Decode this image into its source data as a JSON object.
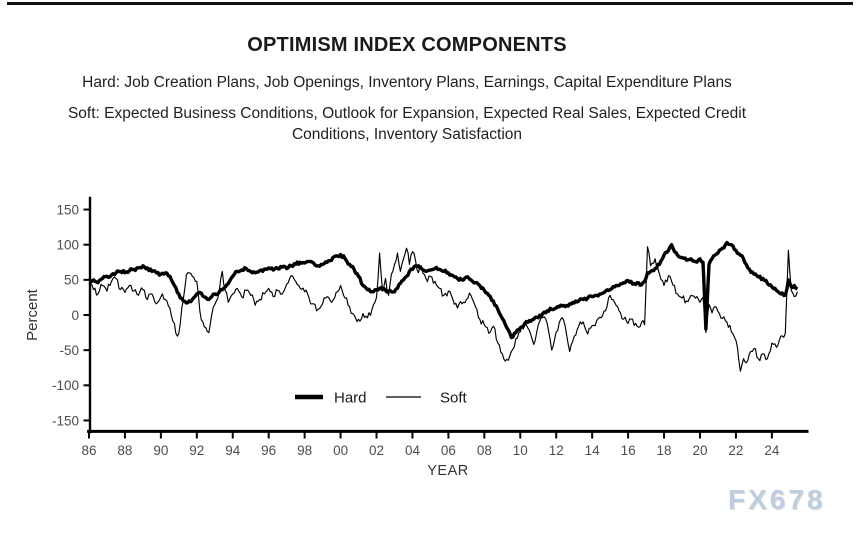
{
  "page": {
    "title": "OPTIMISM INDEX COMPONENTS",
    "hard_note": "Hard: Job Creation Plans, Job Openings, Inventory Plans, Earnings, Capital Expenditure Plans",
    "soft_note": "Soft: Expected Business Conditions, Outlook for Expansion, Expected Real Sales, Expected Credit Conditions, Inventory Satisfaction",
    "watermark": "FX678"
  },
  "colors": {
    "line": "#000000",
    "tick_label": "#4d4d4d",
    "axis_label": "#333333",
    "title": "#1a1a1a",
    "watermark": "#bccee2"
  },
  "chart_data": {
    "type": "line",
    "title": "OPTIMISM INDEX COMPONENTS",
    "xlabel": "YEAR",
    "ylabel": "Percent",
    "xlim": [
      1985.9,
      2025.6
    ],
    "ylim": [
      -165,
      165
    ],
    "grid": false,
    "legend_position": "inside-bottom-center",
    "yticks": [
      150,
      100,
      50,
      0,
      -50,
      -100,
      -150
    ],
    "ytick_labels": [
      "150",
      "100",
      "50",
      "0",
      "-50",
      "-100",
      "-150"
    ],
    "xtick_years": [
      1986,
      1988,
      1990,
      1992,
      1994,
      1996,
      1998,
      2000,
      2002,
      2004,
      2006,
      2008,
      2010,
      2012,
      2014,
      2016,
      2018,
      2020,
      2022,
      2024
    ],
    "xtick_labels": [
      "86",
      "88",
      "90",
      "92",
      "94",
      "96",
      "98",
      "00",
      "02",
      "04",
      "06",
      "08",
      "10",
      "12",
      "14",
      "16",
      "18",
      "20",
      "22",
      "24"
    ],
    "legend": [
      {
        "name": "Hard",
        "stroke_width": 3.4
      },
      {
        "name": "Soft",
        "stroke_width": 1.15
      }
    ],
    "series_format": [
      "year",
      "Hard",
      "Soft"
    ],
    "points": [
      [
        1986.0,
        48,
        44
      ],
      [
        1986.25,
        50,
        36
      ],
      [
        1986.5,
        46,
        30
      ],
      [
        1986.75,
        52,
        42
      ],
      [
        1987.0,
        55,
        34
      ],
      [
        1987.25,
        57,
        48
      ],
      [
        1987.5,
        60,
        52
      ],
      [
        1987.75,
        62,
        36
      ],
      [
        1988.0,
        60,
        32
      ],
      [
        1988.25,
        63,
        42
      ],
      [
        1988.5,
        65,
        34
      ],
      [
        1988.75,
        67,
        28
      ],
      [
        1989.0,
        70,
        36
      ],
      [
        1989.25,
        67,
        22
      ],
      [
        1989.5,
        62,
        30
      ],
      [
        1989.75,
        60,
        16
      ],
      [
        1990.0,
        58,
        26
      ],
      [
        1990.25,
        60,
        22
      ],
      [
        1990.5,
        55,
        10
      ],
      [
        1990.75,
        42,
        -12
      ],
      [
        1990.92,
        32,
        -30
      ],
      [
        1991.08,
        24,
        -12
      ],
      [
        1991.25,
        20,
        22
      ],
      [
        1991.42,
        17,
        57
      ],
      [
        1991.58,
        20,
        60
      ],
      [
        1991.75,
        22,
        55
      ],
      [
        1992.0,
        30,
        48
      ],
      [
        1992.17,
        32,
        5
      ],
      [
        1992.33,
        27,
        -10
      ],
      [
        1992.5,
        25,
        -18
      ],
      [
        1992.67,
        22,
        -25
      ],
      [
        1992.83,
        26,
        0
      ],
      [
        1993.0,
        30,
        15
      ],
      [
        1993.25,
        33,
        35
      ],
      [
        1993.42,
        36,
        62
      ],
      [
        1993.58,
        40,
        35
      ],
      [
        1993.75,
        45,
        18
      ],
      [
        1994.0,
        55,
        30
      ],
      [
        1994.25,
        62,
        38
      ],
      [
        1994.5,
        64,
        26
      ],
      [
        1994.75,
        66,
        35
      ],
      [
        1995.0,
        62,
        28
      ],
      [
        1995.25,
        60,
        14
      ],
      [
        1995.5,
        63,
        22
      ],
      [
        1995.75,
        65,
        30
      ],
      [
        1996.0,
        67,
        38
      ],
      [
        1996.25,
        64,
        26
      ],
      [
        1996.5,
        66,
        35
      ],
      [
        1996.75,
        68,
        30
      ],
      [
        1997.0,
        66,
        44
      ],
      [
        1997.25,
        70,
        56
      ],
      [
        1997.5,
        72,
        48
      ],
      [
        1997.75,
        75,
        38
      ],
      [
        1998.0,
        74,
        33
      ],
      [
        1998.25,
        76,
        24
      ],
      [
        1998.5,
        74,
        16
      ],
      [
        1998.75,
        70,
        8
      ],
      [
        1999.0,
        72,
        16
      ],
      [
        1999.25,
        75,
        26
      ],
      [
        1999.5,
        78,
        18
      ],
      [
        1999.75,
        84,
        32
      ],
      [
        2000.0,
        86,
        42
      ],
      [
        2000.25,
        80,
        24
      ],
      [
        2000.5,
        72,
        12
      ],
      [
        2000.75,
        65,
        0
      ],
      [
        2001.0,
        55,
        -6
      ],
      [
        2001.25,
        42,
        2
      ],
      [
        2001.5,
        36,
        -4
      ],
      [
        2001.75,
        33,
        8
      ],
      [
        2002.0,
        36,
        25
      ],
      [
        2002.17,
        38,
        88
      ],
      [
        2002.33,
        36,
        35
      ],
      [
        2002.5,
        35,
        52
      ],
      [
        2002.67,
        34,
        28
      ],
      [
        2002.83,
        33,
        58
      ],
      [
        2003.0,
        33,
        72
      ],
      [
        2003.17,
        38,
        88
      ],
      [
        2003.33,
        45,
        62
      ],
      [
        2003.5,
        50,
        80
      ],
      [
        2003.67,
        55,
        95
      ],
      [
        2003.83,
        62,
        72
      ],
      [
        2004.0,
        65,
        90
      ],
      [
        2004.17,
        70,
        78
      ],
      [
        2004.33,
        70,
        60
      ],
      [
        2004.5,
        66,
        70
      ],
      [
        2004.75,
        62,
        52
      ],
      [
        2005.0,
        64,
        55
      ],
      [
        2005.25,
        66,
        48
      ],
      [
        2005.5,
        65,
        38
      ],
      [
        2005.75,
        62,
        28
      ],
      [
        2006.0,
        60,
        34
      ],
      [
        2006.25,
        56,
        22
      ],
      [
        2006.5,
        52,
        10
      ],
      [
        2006.75,
        50,
        16
      ],
      [
        2007.0,
        54,
        22
      ],
      [
        2007.25,
        50,
        28
      ],
      [
        2007.5,
        46,
        12
      ],
      [
        2007.75,
        42,
        -6
      ],
      [
        2008.0,
        35,
        -14
      ],
      [
        2008.25,
        28,
        -26
      ],
      [
        2008.5,
        20,
        -16
      ],
      [
        2008.75,
        8,
        -40
      ],
      [
        2009.0,
        -5,
        -55
      ],
      [
        2009.25,
        -18,
        -63
      ],
      [
        2009.5,
        -32,
        -52
      ],
      [
        2009.75,
        -25,
        -34
      ],
      [
        2010.0,
        -18,
        -24
      ],
      [
        2010.25,
        -12,
        -10
      ],
      [
        2010.5,
        -8,
        -22
      ],
      [
        2010.75,
        -6,
        -42
      ],
      [
        2011.0,
        -4,
        -14
      ],
      [
        2011.25,
        2,
        -4
      ],
      [
        2011.5,
        6,
        -12
      ],
      [
        2011.75,
        8,
        -50
      ],
      [
        2012.0,
        10,
        -24
      ],
      [
        2012.25,
        14,
        -6
      ],
      [
        2012.5,
        12,
        -16
      ],
      [
        2012.75,
        16,
        -52
      ],
      [
        2013.0,
        17,
        -30
      ],
      [
        2013.25,
        20,
        -16
      ],
      [
        2013.5,
        22,
        -10
      ],
      [
        2013.75,
        24,
        -27
      ],
      [
        2014.0,
        26,
        -15
      ],
      [
        2014.25,
        28,
        -8
      ],
      [
        2014.5,
        30,
        -4
      ],
      [
        2014.75,
        34,
        6
      ],
      [
        2015.0,
        36,
        28
      ],
      [
        2015.25,
        40,
        18
      ],
      [
        2015.5,
        42,
        6
      ],
      [
        2015.75,
        46,
        -6
      ],
      [
        2016.0,
        49,
        -12
      ],
      [
        2016.25,
        44,
        -6
      ],
      [
        2016.5,
        46,
        -16
      ],
      [
        2016.75,
        43,
        -10
      ],
      [
        2016.92,
        48,
        -14
      ],
      [
        2017.08,
        60,
        97
      ],
      [
        2017.25,
        62,
        70
      ],
      [
        2017.5,
        66,
        80
      ],
      [
        2017.75,
        72,
        58
      ],
      [
        2018.0,
        85,
        42
      ],
      [
        2018.25,
        92,
        56
      ],
      [
        2018.42,
        100,
        48
      ],
      [
        2018.58,
        90,
        42
      ],
      [
        2018.75,
        85,
        30
      ],
      [
        2019.0,
        82,
        24
      ],
      [
        2019.25,
        78,
        20
      ],
      [
        2019.5,
        80,
        28
      ],
      [
        2019.75,
        76,
        24
      ],
      [
        2020.0,
        80,
        18
      ],
      [
        2020.17,
        75,
        25
      ],
      [
        2020.33,
        -20,
        -25
      ],
      [
        2020.5,
        72,
        15
      ],
      [
        2020.67,
        80,
        3
      ],
      [
        2020.83,
        85,
        12
      ],
      [
        2021.0,
        88,
        5
      ],
      [
        2021.25,
        95,
        -5
      ],
      [
        2021.5,
        103,
        -10
      ],
      [
        2021.75,
        100,
        -24
      ],
      [
        2022.0,
        92,
        -36
      ],
      [
        2022.25,
        85,
        -80
      ],
      [
        2022.42,
        80,
        -62
      ],
      [
        2022.58,
        72,
        -68
      ],
      [
        2022.75,
        65,
        -55
      ],
      [
        2023.0,
        58,
        -48
      ],
      [
        2023.25,
        54,
        -62
      ],
      [
        2023.5,
        52,
        -55
      ],
      [
        2023.75,
        45,
        -62
      ],
      [
        2024.0,
        40,
        -40
      ],
      [
        2024.25,
        35,
        -46
      ],
      [
        2024.5,
        30,
        -30
      ],
      [
        2024.75,
        28,
        -26
      ],
      [
        2024.92,
        50,
        92
      ],
      [
        2025.08,
        40,
        35
      ],
      [
        2025.25,
        42,
        26
      ],
      [
        2025.42,
        37,
        33
      ]
    ]
  }
}
